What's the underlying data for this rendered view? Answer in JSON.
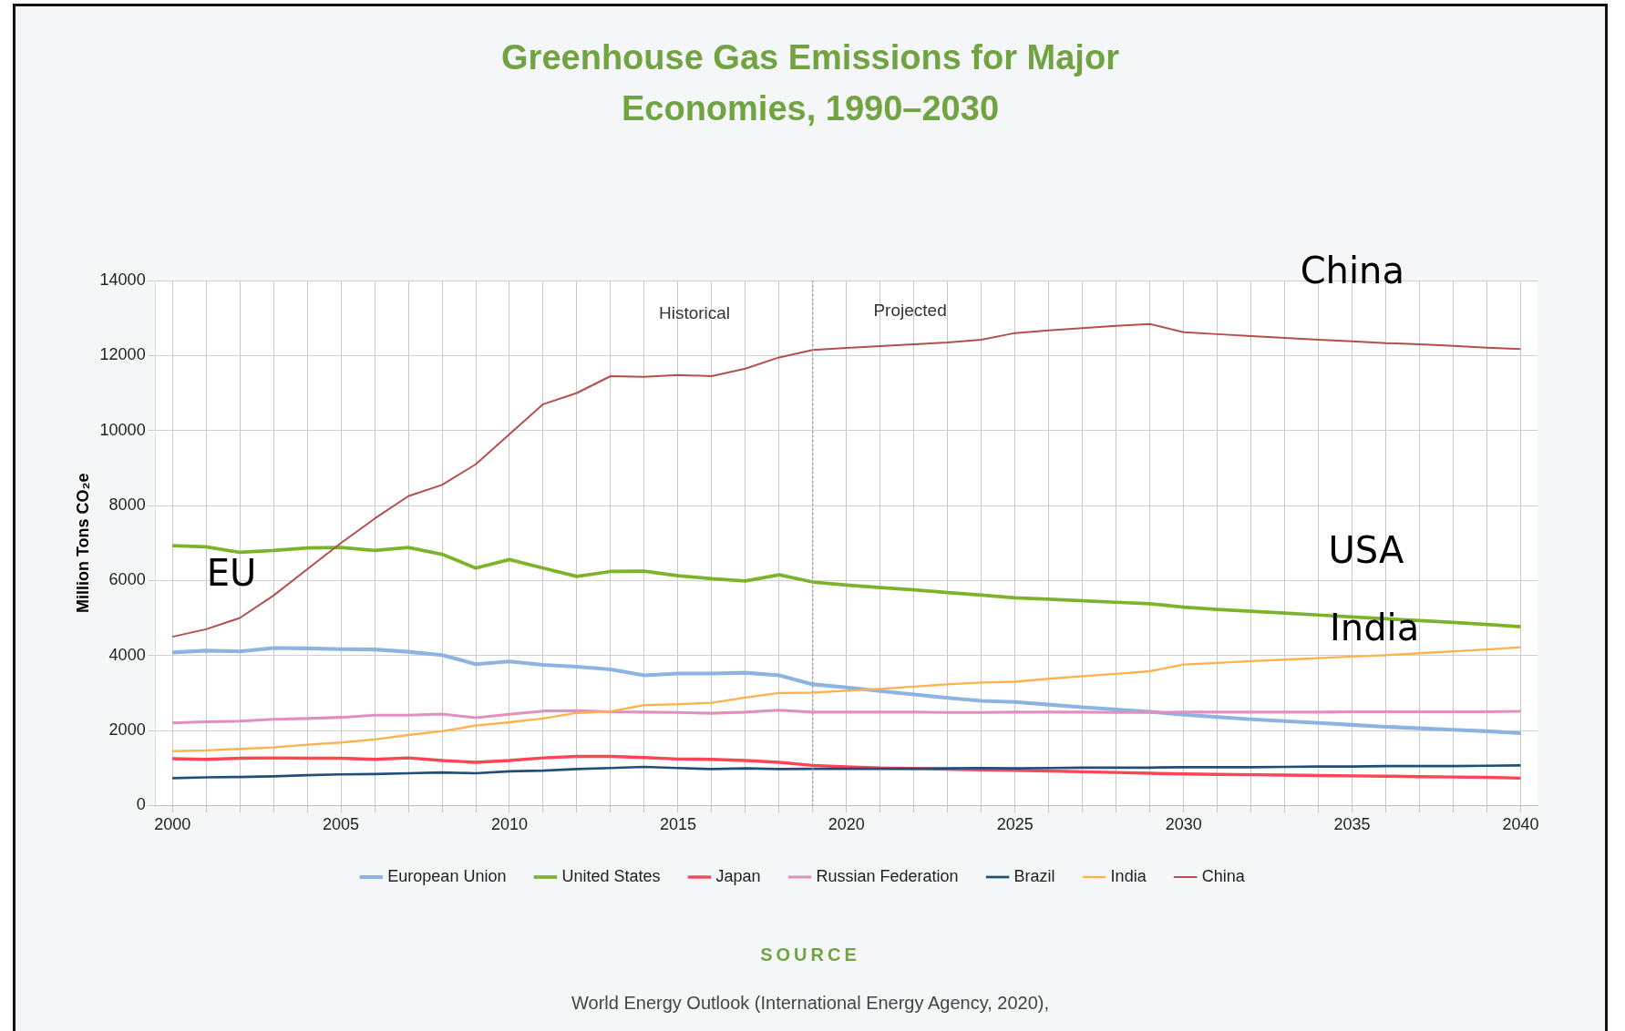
{
  "chart_data": {
    "type": "line",
    "title": "Greenhouse Gas Emissions for Major Economies, 1990–2030",
    "ylabel": "Million Tons CO₂e",
    "x": [
      2000,
      2001,
      2002,
      2003,
      2004,
      2005,
      2006,
      2007,
      2008,
      2009,
      2010,
      2011,
      2012,
      2013,
      2014,
      2015,
      2016,
      2017,
      2018,
      2019,
      2020,
      2021,
      2022,
      2023,
      2024,
      2025,
      2026,
      2027,
      2028,
      2029,
      2030,
      2031,
      2032,
      2033,
      2034,
      2035,
      2036,
      2037,
      2038,
      2039,
      2040
    ],
    "series": [
      {
        "name": "European Union",
        "color": "#8db3e2",
        "values": [
          4080,
          4130,
          4110,
          4200,
          4190,
          4170,
          4160,
          4100,
          4010,
          3770,
          3840,
          3750,
          3700,
          3630,
          3470,
          3520,
          3520,
          3540,
          3470,
          3230,
          3150,
          3050,
          2960,
          2870,
          2790,
          2760,
          2690,
          2620,
          2560,
          2500,
          2420,
          2360,
          2300,
          2250,
          2200,
          2150,
          2100,
          2060,
          2020,
          1980,
          1930
        ]
      },
      {
        "name": "United States",
        "color": "#7cb32a",
        "values": [
          6930,
          6900,
          6750,
          6800,
          6870,
          6880,
          6800,
          6880,
          6700,
          6330,
          6560,
          6330,
          6110,
          6240,
          6250,
          6130,
          6050,
          5990,
          6150,
          5960,
          5880,
          5810,
          5750,
          5680,
          5610,
          5540,
          5500,
          5460,
          5420,
          5380,
          5290,
          5230,
          5180,
          5130,
          5080,
          5030,
          4980,
          4930,
          4880,
          4830,
          4770
        ]
      },
      {
        "name": "Japan",
        "color": "#ff4455",
        "values": [
          1250,
          1230,
          1260,
          1270,
          1260,
          1260,
          1230,
          1270,
          1200,
          1150,
          1200,
          1270,
          1310,
          1310,
          1280,
          1240,
          1230,
          1200,
          1150,
          1070,
          1030,
          1000,
          990,
          970,
          950,
          940,
          920,
          900,
          880,
          860,
          840,
          830,
          820,
          810,
          800,
          790,
          780,
          770,
          760,
          750,
          730
        ]
      },
      {
        "name": "Russian Federation",
        "color": "#e08fc0",
        "values": [
          2200,
          2230,
          2250,
          2300,
          2320,
          2350,
          2410,
          2410,
          2440,
          2340,
          2430,
          2520,
          2530,
          2500,
          2490,
          2480,
          2460,
          2490,
          2540,
          2490,
          2490,
          2490,
          2490,
          2480,
          2480,
          2490,
          2490,
          2490,
          2480,
          2480,
          2490,
          2490,
          2490,
          2490,
          2490,
          2500,
          2500,
          2500,
          2500,
          2500,
          2510
        ]
      },
      {
        "name": "Brazil",
        "color": "#1f4e79",
        "values": [
          730,
          750,
          760,
          780,
          810,
          830,
          840,
          860,
          880,
          860,
          910,
          930,
          970,
          1000,
          1030,
          1000,
          970,
          990,
          970,
          980,
          980,
          980,
          980,
          990,
          1000,
          990,
          1000,
          1010,
          1010,
          1010,
          1020,
          1020,
          1020,
          1030,
          1040,
          1040,
          1050,
          1050,
          1050,
          1060,
          1070
        ]
      },
      {
        "name": "India",
        "color": "#ffb14e",
        "values": [
          1450,
          1470,
          1510,
          1550,
          1620,
          1680,
          1760,
          1880,
          1980,
          2130,
          2220,
          2320,
          2470,
          2510,
          2680,
          2700,
          2740,
          2880,
          3000,
          3010,
          3060,
          3110,
          3170,
          3230,
          3280,
          3300,
          3380,
          3450,
          3510,
          3580,
          3760,
          3800,
          3850,
          3890,
          3930,
          3970,
          4010,
          4060,
          4110,
          4160,
          4220
        ]
      },
      {
        "name": "China",
        "color": "#b3504d",
        "values": [
          4500,
          4700,
          5000,
          5600,
          6300,
          7000,
          7650,
          8250,
          8550,
          9100,
          9900,
          10700,
          11000,
          11450,
          11430,
          11480,
          11450,
          11650,
          11950,
          12150,
          12200,
          12250,
          12300,
          12350,
          12420,
          12600,
          12670,
          12730,
          12790,
          12840,
          12620,
          12570,
          12520,
          12470,
          12420,
          12380,
          12330,
          12300,
          12260,
          12210,
          12170
        ]
      }
    ],
    "xlim": [
      1999.5,
      2040.5
    ],
    "xticks": [
      2000,
      {
        "value": 2001,
        "label": null
      },
      {
        "value": 2002,
        "label": null
      },
      {
        "value": 2003,
        "label": null
      },
      {
        "value": 2004,
        "label": null
      },
      2005,
      {
        "value": 2006,
        "label": null
      },
      {
        "value": 2007,
        "label": null
      },
      {
        "value": 2008,
        "label": null
      },
      {
        "value": 2009,
        "label": null
      },
      2010,
      {
        "value": 2011,
        "label": null
      },
      {
        "value": 2012,
        "label": null
      },
      {
        "value": 2013,
        "label": null
      },
      {
        "value": 2014,
        "label": null
      },
      2015,
      {
        "value": 2016,
        "label": null
      },
      {
        "value": 2017,
        "label": null
      },
      {
        "value": 2018,
        "label": null
      },
      {
        "value": 2019,
        "label": null
      },
      2020,
      {
        "value": 2021,
        "label": null
      },
      {
        "value": 2022,
        "label": null
      },
      {
        "value": 2023,
        "label": null
      },
      {
        "value": 2024,
        "label": null
      },
      2025,
      {
        "value": 2026,
        "label": null
      },
      {
        "value": 2027,
        "label": null
      },
      {
        "value": 2028,
        "label": null
      },
      {
        "value": 2029,
        "label": null
      },
      2030,
      {
        "value": 2031,
        "label": null
      },
      {
        "value": 2032,
        "label": null
      },
      {
        "value": 2033,
        "label": null
      },
      {
        "value": 2034,
        "label": null
      },
      2035,
      {
        "value": 2036,
        "label": null
      },
      {
        "value": 2037,
        "label": null
      },
      {
        "value": 2038,
        "label": null
      },
      {
        "value": 2039,
        "label": null
      },
      2040
    ],
    "ylim": [
      0,
      14000
    ],
    "yticks": [
      0,
      2000,
      4000,
      6000,
      8000,
      10000,
      12000,
      14000
    ],
    "grid": true,
    "legend": "bottom",
    "marker": "none",
    "line_style": "solid",
    "ref_lines": [
      {
        "axis": "x",
        "value": 2019,
        "color": "#999999",
        "line_style": "dotted"
      }
    ],
    "annotations": [
      "Historical",
      "Projected",
      "China",
      "USA",
      "India",
      "EU",
      "SOURCE",
      "World Energy Outlook (International Energy Agency, 2020),"
    ]
  }
}
